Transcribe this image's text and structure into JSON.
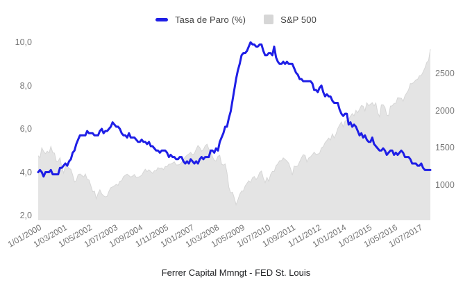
{
  "legend": {
    "items": [
      {
        "label": "Tasa de Paro (%)",
        "marker": "line-dash",
        "color": "#1e1ee6"
      },
      {
        "label": "S&P 500",
        "marker": "square",
        "color": "#d6d6d6"
      }
    ]
  },
  "footer": {
    "source": "Ferrer Capital Mmngt - FED St. Louis"
  },
  "chart_data": {
    "type": "line",
    "subtype": "combo line + area, dual y-axes",
    "title": "",
    "xlabel": "",
    "ylabel_left": "",
    "ylabel_right": "",
    "grid": false,
    "legend_position": "top-center",
    "x_start": "1/01/2000",
    "x_end": "1/01/2018",
    "x_frequency": "monthly",
    "x_tick_interval_months": 14,
    "x_tick_labels": [
      "1/01/2000",
      "1/03/2001",
      "1/05/2002",
      "1/07/2003",
      "1/09/2004",
      "1/11/2005",
      "1/01/2007",
      "1/03/2008",
      "1/05/2009",
      "1/07/2010",
      "1/09/2011",
      "1/11/2012",
      "1/01/2014",
      "1/03/2015",
      "1/05/2016",
      "1/07/2017"
    ],
    "left_axis": {
      "series": "Tasa de Paro (%)",
      "ticks": [
        {
          "v": 2,
          "label": "2,0"
        },
        {
          "v": 4,
          "label": "4,0"
        },
        {
          "v": 6,
          "label": "6,0"
        },
        {
          "v": 8,
          "label": "8,0"
        },
        {
          "v": 10,
          "label": "10,0"
        }
      ]
    },
    "right_axis": {
      "series": "S&P 500",
      "ticks": [
        {
          "v": 1000,
          "label": "1000"
        },
        {
          "v": 1500,
          "label": "1500"
        },
        {
          "v": 2000,
          "label": "2000"
        },
        {
          "v": 2500,
          "label": "2500"
        }
      ]
    },
    "series": [
      {
        "name": "Tasa de Paro (%)",
        "type": "line",
        "axis": "left",
        "color": "#1e1ee6",
        "values": [
          4.0,
          4.1,
          4.0,
          3.8,
          4.0,
          4.0,
          4.0,
          4.1,
          3.9,
          3.9,
          3.9,
          3.9,
          4.2,
          4.2,
          4.3,
          4.4,
          4.3,
          4.5,
          4.6,
          4.9,
          5.0,
          5.3,
          5.5,
          5.7,
          5.7,
          5.7,
          5.7,
          5.9,
          5.8,
          5.8,
          5.8,
          5.7,
          5.7,
          5.7,
          5.9,
          6.0,
          5.8,
          5.9,
          5.9,
          6.0,
          6.1,
          6.3,
          6.2,
          6.1,
          6.1,
          6.0,
          5.8,
          5.7,
          5.7,
          5.6,
          5.8,
          5.6,
          5.6,
          5.6,
          5.5,
          5.4,
          5.4,
          5.5,
          5.4,
          5.4,
          5.3,
          5.4,
          5.2,
          5.2,
          5.1,
          5.0,
          5.0,
          4.9,
          5.0,
          5.0,
          5.0,
          4.9,
          4.7,
          4.8,
          4.7,
          4.7,
          4.6,
          4.6,
          4.7,
          4.7,
          4.5,
          4.4,
          4.5,
          4.4,
          4.6,
          4.5,
          4.4,
          4.5,
          4.4,
          4.6,
          4.7,
          4.6,
          4.7,
          4.7,
          4.7,
          5.0,
          5.0,
          4.9,
          5.1,
          5.0,
          5.4,
          5.6,
          5.8,
          6.1,
          6.1,
          6.5,
          6.8,
          7.3,
          7.8,
          8.3,
          8.7,
          9.0,
          9.4,
          9.5,
          9.5,
          9.6,
          9.8,
          10.0,
          9.9,
          9.9,
          9.8,
          9.8,
          9.9,
          9.9,
          9.6,
          9.4,
          9.4,
          9.5,
          9.5,
          9.4,
          9.8,
          9.3,
          9.1,
          9.0,
          9.0,
          9.1,
          9.0,
          9.1,
          9.0,
          9.0,
          9.0,
          8.8,
          8.6,
          8.5,
          8.3,
          8.3,
          8.2,
          8.2,
          8.2,
          8.2,
          8.2,
          8.1,
          7.8,
          7.8,
          7.7,
          7.9,
          8.0,
          7.7,
          7.5,
          7.6,
          7.5,
          7.5,
          7.3,
          7.2,
          7.2,
          7.2,
          6.9,
          6.7,
          6.6,
          6.7,
          6.7,
          6.2,
          6.3,
          6.1,
          6.2,
          6.1,
          5.9,
          5.7,
          5.8,
          5.6,
          5.7,
          5.5,
          5.4,
          5.4,
          5.6,
          5.3,
          5.2,
          5.1,
          5.0,
          5.0,
          5.1,
          5.0,
          4.8,
          4.9,
          5.0,
          5.0,
          4.8,
          4.9,
          4.8,
          4.9,
          5.0,
          4.9,
          4.7,
          4.7,
          4.7,
          4.6,
          4.4,
          4.4,
          4.4,
          4.3,
          4.3,
          4.4,
          4.2,
          4.1,
          4.1,
          4.1,
          4.1
        ]
      },
      {
        "name": "S&P 500",
        "type": "area",
        "axis": "right",
        "color": "#e4e4e4",
        "edge_color": "#d6d6d6",
        "values": [
          1394,
          1366,
          1499,
          1452,
          1421,
          1455,
          1431,
          1518,
          1436,
          1429,
          1315,
          1320,
          1366,
          1240,
          1160,
          1249,
          1256,
          1224,
          1211,
          1134,
          1041,
          1060,
          1139,
          1148,
          1130,
          1107,
          1147,
          1077,
          1067,
          990,
          911,
          916,
          815,
          886,
          936,
          880,
          856,
          841,
          848,
          917,
          964,
          975,
          990,
          1008,
          996,
          1051,
          1058,
          1112,
          1131,
          1145,
          1126,
          1107,
          1121,
          1141,
          1102,
          1104,
          1115,
          1130,
          1174,
          1212,
          1181,
          1204,
          1181,
          1157,
          1192,
          1191,
          1234,
          1220,
          1229,
          1207,
          1249,
          1248,
          1280,
          1281,
          1295,
          1311,
          1270,
          1270,
          1277,
          1304,
          1336,
          1378,
          1401,
          1418,
          1438,
          1407,
          1421,
          1482,
          1531,
          1503,
          1455,
          1474,
          1527,
          1549,
          1481,
          1468,
          1379,
          1331,
          1323,
          1386,
          1400,
          1280,
          1267,
          1283,
          1166,
          969,
          896,
          903,
          826,
          735,
          798,
          873,
          919,
          919,
          987,
          1021,
          1057,
          1036,
          1096,
          1115,
          1074,
          1104,
          1169,
          1187,
          1089,
          1031,
          1102,
          1049,
          1141,
          1183,
          1181,
          1258,
          1286,
          1327,
          1326,
          1364,
          1345,
          1321,
          1292,
          1219,
          1131,
          1253,
          1247,
          1258,
          1312,
          1366,
          1408,
          1398,
          1310,
          1362,
          1379,
          1407,
          1441,
          1412,
          1416,
          1426,
          1498,
          1515,
          1569,
          1598,
          1631,
          1606,
          1686,
          1633,
          1682,
          1757,
          1806,
          1848,
          1783,
          1859,
          1872,
          1884,
          1924,
          1960,
          1931,
          2003,
          1972,
          2018,
          2068,
          2059,
          1995,
          2105,
          2068,
          2086,
          2107,
          2063,
          2104,
          1972,
          1920,
          2079,
          2080,
          2044,
          1940,
          1932,
          2060,
          2065,
          2097,
          2099,
          2174,
          2171,
          2168,
          2126,
          2199,
          2239,
          2279,
          2364,
          2363,
          2384,
          2412,
          2423,
          2470,
          2472,
          2519,
          2575,
          2648,
          2674,
          2824
        ]
      }
    ]
  }
}
